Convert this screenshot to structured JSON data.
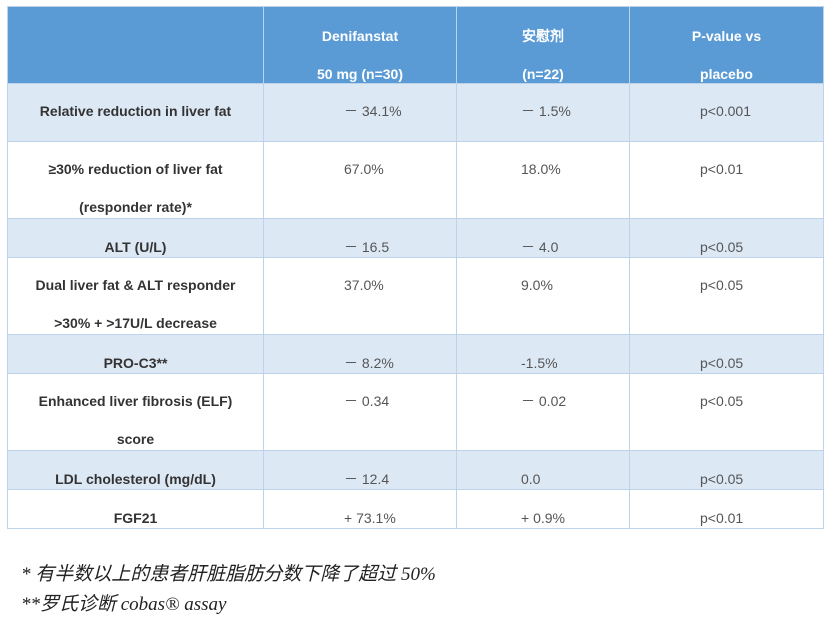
{
  "table": {
    "header": {
      "col0": "",
      "col1_line1": "Denifanstat",
      "col1_line2": "50 mg (n=30)",
      "col2_line1": "安慰剂",
      "col2_line2": "(n=22)",
      "col3_line1": "P-value vs",
      "col3_line2": "placebo"
    },
    "rows": [
      {
        "label1": "Relative reduction in liver fat",
        "label2": "",
        "deni": "－ 34.1%",
        "placebo": "－ 1.5%",
        "p": "p<0.001"
      },
      {
        "label1": "≥30% reduction of liver fat",
        "label2": "(responder rate)*",
        "deni": "67.0%",
        "placebo": "18.0%",
        "p": "p<0.01"
      },
      {
        "label1": "ALT (U/L)",
        "label2": "",
        "deni": "－ 16.5",
        "placebo": "－ 4.0",
        "p": "p<0.05"
      },
      {
        "label1": "Dual liver fat & ALT responder",
        "label2": ">30% + >17U/L decrease",
        "deni": "37.0%",
        "placebo": "9.0%",
        "p": "p<0.05"
      },
      {
        "label1": "PRO-C3**",
        "label2": "",
        "deni": "－ 8.2%",
        "placebo": "-1.5%",
        "p": "p<0.05"
      },
      {
        "label1": "Enhanced liver fibrosis (ELF)",
        "label2": "score",
        "deni": "－ 0.34",
        "placebo": "－ 0.02",
        "p": "p<0.05"
      },
      {
        "label1": "LDL cholesterol (mg/dL)",
        "label2": "",
        "deni": "－ 12.4",
        "placebo": "0.0",
        "p": "p<0.05"
      },
      {
        "label1": "FGF21",
        "label2": "",
        "deni": "+ 73.1%",
        "placebo": "+ 0.9%",
        "p": "p<0.01"
      }
    ]
  },
  "footnotes": {
    "note1": "* 有半数以上的患者肝脏脂肪分数下降了超过 50%",
    "note2": "**罗氏诊断 cobas® assay"
  },
  "colors": {
    "header_bg": "#5b9bd5",
    "alt_row_bg": "#dde8f5",
    "border": "#bcd3ea"
  }
}
